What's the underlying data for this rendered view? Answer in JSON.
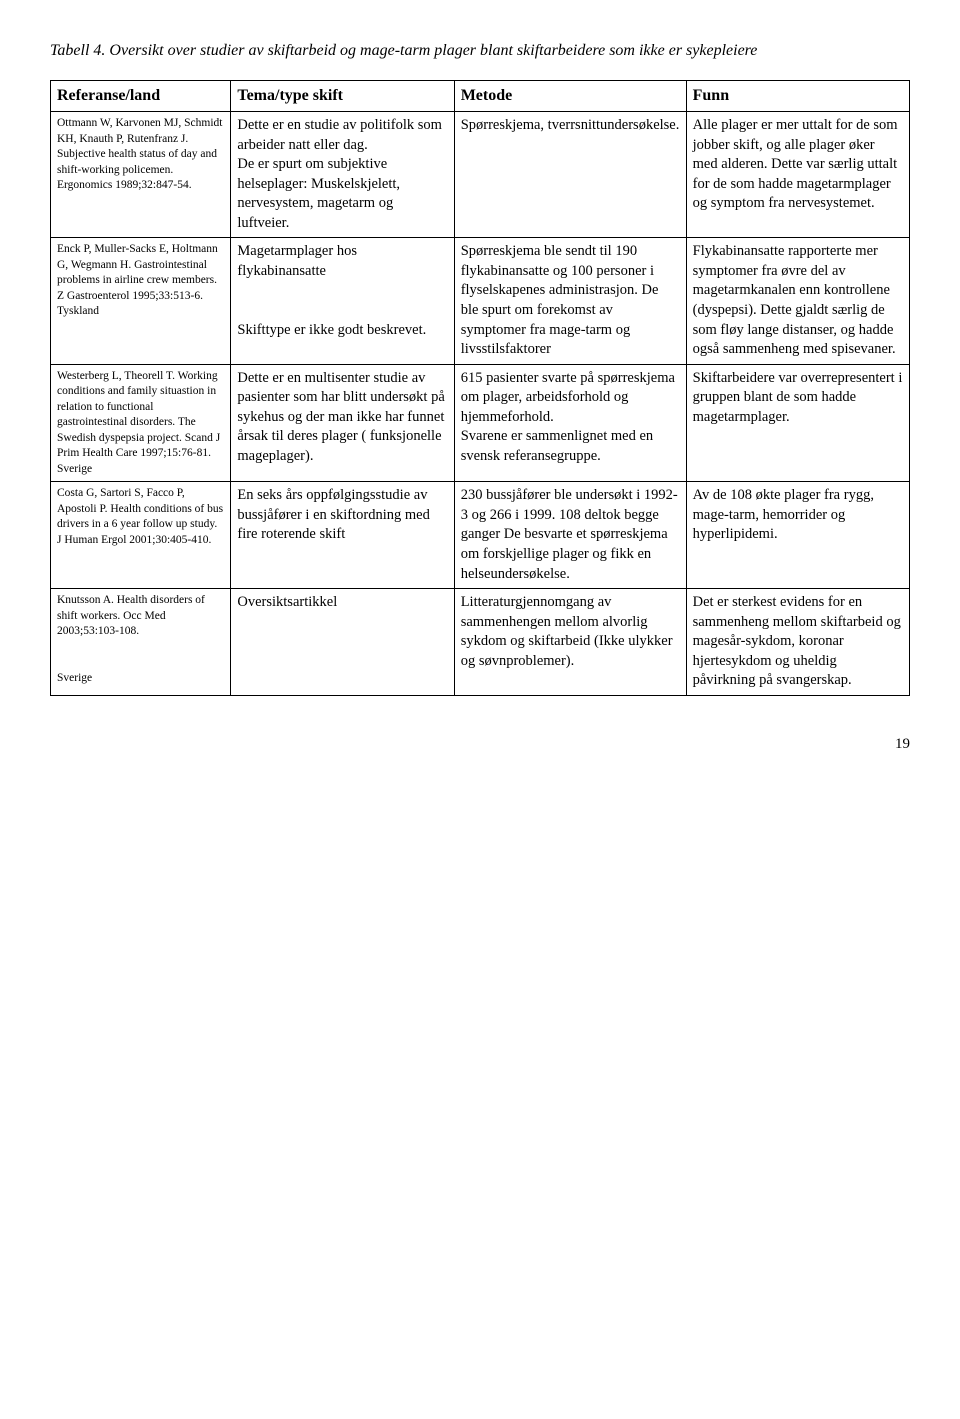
{
  "title": "Tabell 4. Oversikt over studier av skiftarbeid og mage-tarm plager blant skiftarbeidere som ikke er sykepleiere",
  "headers": {
    "ref": "Referanse/land",
    "tema": "Tema/type skift",
    "metode": "Metode",
    "funn": "Funn"
  },
  "rows": [
    {
      "ref": "Ottmann W, Karvonen MJ, Schmidt KH, Knauth P, Rutenfranz J. Subjective health status of day and shift-working policemen. Ergonomics 1989;32:847-54.",
      "tema": "Dette er en studie av politifolk som arbeider natt eller dag.\nDe er spurt om subjektive helseplager: Muskelskjelett, nervesystem, magetarm og luftveier.",
      "metode": "Spørreskjema, tverrsnittundersøkelse.",
      "funn": "Alle plager er mer uttalt for de som jobber skift, og alle plager øker med alderen. Dette var særlig uttalt for de som hadde magetarmplager og symptom fra nervesystemet."
    },
    {
      "ref": "Enck P, Muller-Sacks E, Holtmann G, Wegmann H. Gastrointestinal problems in airline crew members. Z Gastroenterol 1995;33:513-6.\nTyskland",
      "tema": "Magetarmplager hos flykabinansatte\n\nSkifttype er ikke godt beskrevet.",
      "metode": "Spørreskjema ble sendt til 190 flykabinansatte og 100 personer i flyselskapenes administrasjon. De ble spurt om forekomst av symptomer fra mage-tarm og livsstilsfaktorer",
      "funn": "Flykabinansatte rapporterte mer symptomer fra øvre del av magetarmkanalen enn kontrollene (dyspepsi). Dette gjaldt særlig de som fløy lange distanser, og hadde også sammenheng med spisevaner."
    },
    {
      "ref": "Westerberg L, Theorell T. Working conditions and family situastion in relation to functional gastrointestinal disorders. The Swedish dyspepsia project. Scand J Prim Health Care 1997;15:76-81.\nSverige",
      "tema": "Dette er en multisenter studie av pasienter som har blitt undersøkt på sykehus og der man ikke har funnet årsak til deres plager ( funksjonelle mageplager).",
      "metode": "615 pasienter svarte på spørreskjema om plager, arbeidsforhold og hjemmeforhold.\nSvarene er sammenlignet med en svensk referansegruppe.",
      "funn": "Skiftarbeidere var overrepresentert i gruppen blant de som hadde magetarmplager."
    },
    {
      "ref": "Costa G, Sartori S, Facco P, Apostoli P. Health conditions of bus drivers in a 6 year follow up study. J Human Ergol 2001;30:405-410.",
      "tema": "En seks års oppfølgingsstudie av bussjåfører i en skiftordning med fire roterende skift",
      "metode": "230 bussjåfører ble undersøkt i 1992-3 og 266 i 1999. 108 deltok begge ganger De besvarte et spørreskjema om forskjellige plager og fikk en helseundersøkelse.",
      "funn": "Av de 108 økte plager fra rygg, mage-tarm, hemorrider og hyperlipidemi."
    },
    {
      "ref": "Knutsson A. Health disorders of shift workers. Occ Med 2003;53:103-108.\n\nSverige",
      "tema": "Oversiktsartikkel",
      "metode": "Litteraturgjennomgang av sammenhengen mellom alvorlig sykdom og skiftarbeid (Ikke ulykker og søvnproblemer).",
      "funn": "Det er sterkest evidens for en sammenheng mellom skiftarbeid og magesår-sykdom, koronar hjertesykdom og uheldig påvirkning på svangerskap."
    }
  ],
  "page_number": "19"
}
